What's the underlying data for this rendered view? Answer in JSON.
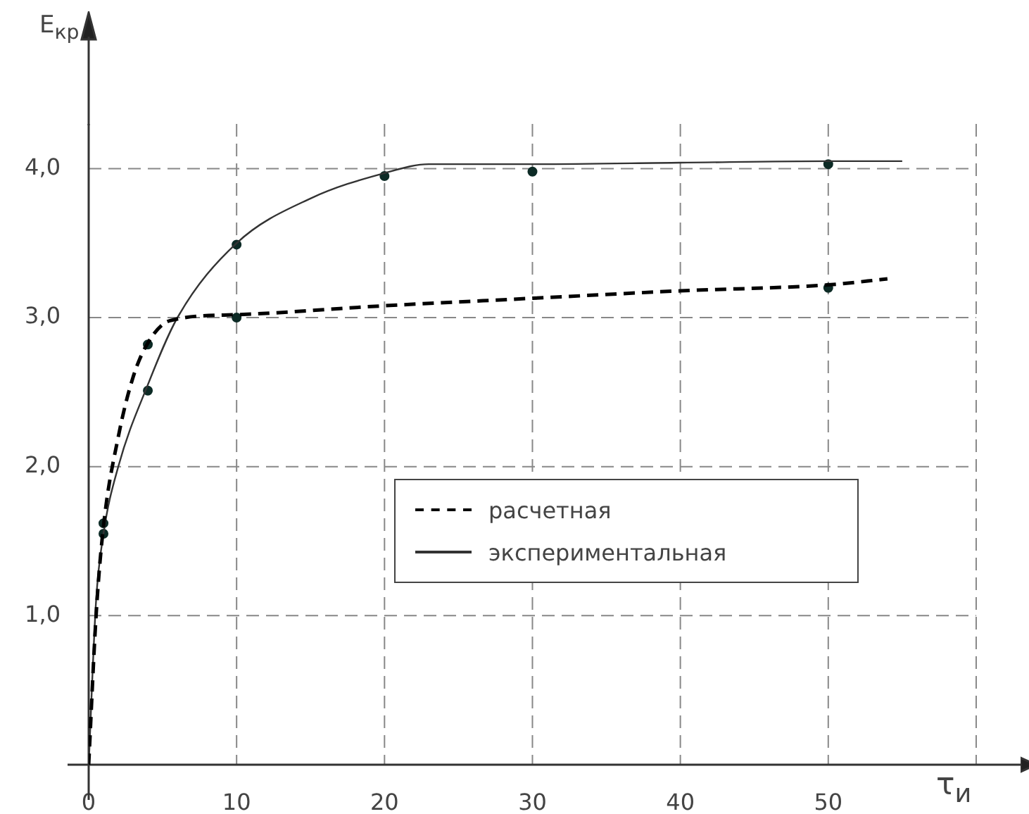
{
  "chart_data": {
    "type": "line",
    "xlabel": "τ$_{и}$",
    "ylabel": "E$_{кр}$",
    "xlim": [
      0,
      63
    ],
    "xticks": [
      0,
      10,
      20,
      30,
      40,
      50,
      {
        "value": 60,
        "label": null
      }
    ],
    "ylim": [
      0,
      4.3
    ],
    "yticks": [
      {
        "value": 1,
        "label": "1,0"
      },
      {
        "value": 2,
        "label": "2,0"
      },
      {
        "value": 3,
        "label": "3,0"
      },
      {
        "value": 4,
        "label": "4,0"
      }
    ],
    "grid": true,
    "legend": "right",
    "marker": "none",
    "series": [
      {
        "name": "расчетная",
        "color": "#000000",
        "line_style": "dashed",
        "x": [
          0,
          0.5,
          1,
          2,
          3,
          4,
          5.5,
          10,
          20,
          30,
          40,
          50,
          54
        ],
        "values": [
          0,
          1.0,
          1.6,
          2.2,
          2.6,
          2.83,
          2.98,
          3.02,
          3.08,
          3.13,
          3.18,
          3.22,
          3.26
        ]
      },
      {
        "name": "экспериментальная",
        "color": "#333333",
        "line_style": "solid",
        "x": [
          0,
          0.5,
          1,
          2,
          4,
          6,
          10,
          15,
          20,
          23,
          30,
          40,
          50,
          55
        ],
        "values": [
          0,
          1.1,
          1.55,
          2.0,
          2.55,
          3.0,
          3.5,
          3.8,
          3.97,
          4.03,
          4.03,
          4.04,
          4.05,
          4.05
        ]
      },
      {
        "type": "scatter",
        "color": "#0d2b26",
        "marker": "circle",
        "x": [
          1,
          4,
          10,
          20,
          30,
          50
        ],
        "values": [
          1.55,
          2.51,
          3.49,
          3.95,
          3.98,
          4.03
        ]
      },
      {
        "type": "scatter",
        "color": "#0d2b26",
        "marker": "circle",
        "x": [
          1,
          4,
          10,
          50
        ],
        "values": [
          1.62,
          2.82,
          3.0,
          3.2
        ]
      }
    ]
  }
}
